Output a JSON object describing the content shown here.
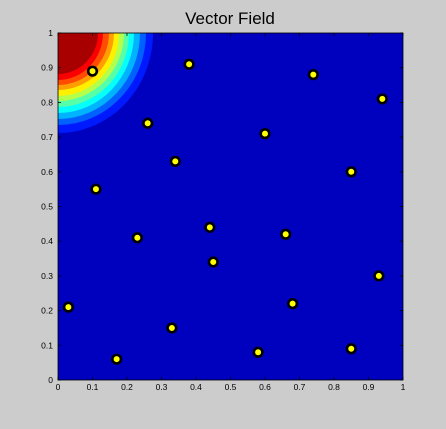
{
  "chart_data": {
    "type": "heatmap",
    "title": "Vector Field",
    "xlabel": "",
    "ylabel": "",
    "xlim": [
      0,
      1
    ],
    "ylim": [
      0,
      1
    ],
    "xticks": [
      "0",
      "0.1",
      "0.2",
      "0.3",
      "0.4",
      "0.5",
      "0.6",
      "0.7",
      "0.8",
      "0.9",
      "1"
    ],
    "yticks": [
      "0",
      "0.1",
      "0.2",
      "0.3",
      "0.4",
      "0.5",
      "0.6",
      "0.7",
      "0.8",
      "0.9",
      "1"
    ],
    "grid": false,
    "colormap": "jet",
    "field_peak": {
      "x": 0,
      "y": 1
    },
    "points": [
      {
        "x": 0.1,
        "y": 0.89
      },
      {
        "x": 0.38,
        "y": 0.91
      },
      {
        "x": 0.74,
        "y": 0.88
      },
      {
        "x": 0.94,
        "y": 0.81
      },
      {
        "x": 0.26,
        "y": 0.74
      },
      {
        "x": 0.6,
        "y": 0.71
      },
      {
        "x": 0.34,
        "y": 0.63
      },
      {
        "x": 0.85,
        "y": 0.6
      },
      {
        "x": 0.11,
        "y": 0.55
      },
      {
        "x": 0.44,
        "y": 0.44
      },
      {
        "x": 0.66,
        "y": 0.42
      },
      {
        "x": 0.23,
        "y": 0.41
      },
      {
        "x": 0.45,
        "y": 0.34
      },
      {
        "x": 0.93,
        "y": 0.3
      },
      {
        "x": 0.68,
        "y": 0.22
      },
      {
        "x": 0.03,
        "y": 0.21
      },
      {
        "x": 0.33,
        "y": 0.15
      },
      {
        "x": 0.85,
        "y": 0.09
      },
      {
        "x": 0.58,
        "y": 0.08
      },
      {
        "x": 0.17,
        "y": 0.06
      }
    ]
  },
  "colors": {
    "background": "#cccccc",
    "field_base": "#0000bf",
    "marker_fill": "#ffff00",
    "marker_edge": "#000000"
  }
}
